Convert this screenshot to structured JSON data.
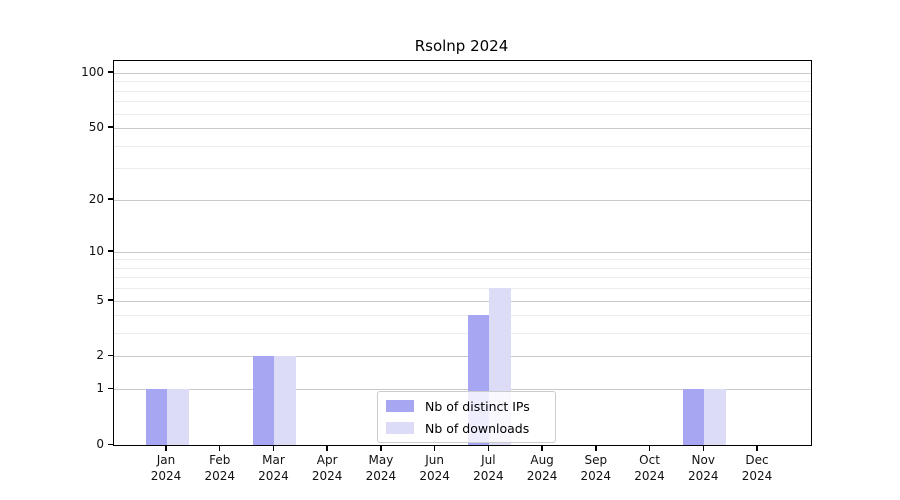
{
  "chart_data": {
    "type": "bar",
    "title": "Rsolnp 2024",
    "categories": [
      "Jan",
      "Feb",
      "Mar",
      "Apr",
      "May",
      "Jun",
      "Jul",
      "Aug",
      "Sep",
      "Oct",
      "Nov",
      "Dec"
    ],
    "x_sublabel": "2024",
    "series": [
      {
        "name": "Nb of distinct IPs",
        "color": "#a6a6f3",
        "values": [
          1,
          0,
          2,
          0,
          0,
          0,
          4,
          0,
          0,
          0,
          1,
          0
        ]
      },
      {
        "name": "Nb of downloads",
        "color": "#dcdcf7",
        "values": [
          1,
          0,
          2,
          0,
          0,
          0,
          6,
          0,
          0,
          0,
          1,
          0
        ]
      }
    ],
    "y_axis": {
      "scale": "log1p",
      "tick_values": [
        0,
        1,
        2,
        5,
        10,
        20,
        50,
        100
      ],
      "minor_gridline_values": [
        3,
        4,
        6,
        7,
        8,
        9,
        30,
        40,
        60,
        70,
        80,
        90
      ],
      "top_value": 116
    },
    "grid": {
      "major_color": "#c9c9c9",
      "minor_color": "#ececec"
    },
    "legend": {
      "position": "inside-bottom-center"
    },
    "axis_color": "#000000"
  }
}
